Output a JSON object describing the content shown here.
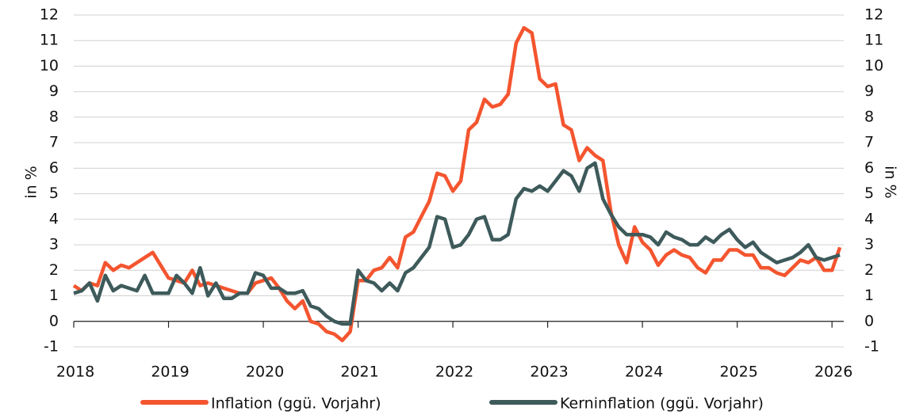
{
  "chart_data": {
    "type": "line",
    "ylabel": "in %",
    "y2label": "in %",
    "categories": [
      "2018",
      null,
      null,
      null,
      null,
      null,
      null,
      null,
      null,
      null,
      null,
      null,
      "2019",
      null,
      null,
      null,
      null,
      null,
      null,
      null,
      null,
      null,
      null,
      null,
      "2020",
      null,
      null,
      null,
      null,
      null,
      null,
      null,
      null,
      null,
      null,
      null,
      "2021",
      null,
      null,
      null,
      null,
      null,
      null,
      null,
      null,
      null,
      null,
      null,
      "2022",
      null,
      null,
      null,
      null,
      null,
      null,
      null,
      null,
      null,
      null,
      null,
      "2023",
      null,
      null,
      null,
      null,
      null,
      null,
      null,
      null,
      null,
      null,
      null,
      "2024",
      null,
      null,
      null,
      null,
      null,
      null,
      null,
      null,
      null,
      null,
      null,
      "2025",
      null,
      null,
      null,
      null,
      null,
      null,
      null,
      null,
      null,
      null,
      null,
      "2026",
      null
    ],
    "series": [
      {
        "name": "Inflation (ggü. Vorjahr)",
        "color": "#f4552f",
        "values": [
          1.4,
          1.2,
          1.5,
          1.4,
          2.3,
          2.0,
          2.2,
          2.1,
          2.3,
          2.5,
          2.7,
          2.2,
          1.7,
          1.6,
          1.5,
          2.0,
          1.4,
          1.5,
          1.4,
          1.3,
          1.2,
          1.1,
          1.1,
          1.5,
          1.6,
          1.7,
          1.3,
          0.8,
          0.5,
          0.8,
          0.0,
          -0.1,
          -0.4,
          -0.5,
          -0.75,
          -0.4,
          1.6,
          1.6,
          2.0,
          2.1,
          2.5,
          2.1,
          3.3,
          3.5,
          4.1,
          4.7,
          5.8,
          5.7,
          5.1,
          5.5,
          7.5,
          7.8,
          8.7,
          8.4,
          8.5,
          8.9,
          10.9,
          11.5,
          11.3,
          9.5,
          9.2,
          9.3,
          7.7,
          7.5,
          6.3,
          6.8,
          6.5,
          6.3,
          4.3,
          3.0,
          2.3,
          3.7,
          3.1,
          2.8,
          2.2,
          2.6,
          2.8,
          2.6,
          2.5,
          2.1,
          1.9,
          2.4,
          2.4,
          2.8,
          2.8,
          2.6,
          2.6,
          2.1,
          2.1,
          1.9,
          1.8,
          2.1,
          2.4,
          2.3,
          2.5,
          2.0,
          2.0,
          2.9
        ]
      },
      {
        "name": "Kerninflation (ggü. Vorjahr)",
        "color": "#3e5a5b",
        "values": [
          1.1,
          1.2,
          1.5,
          0.8,
          1.8,
          1.2,
          1.4,
          1.3,
          1.2,
          1.8,
          1.1,
          1.1,
          1.1,
          1.8,
          1.5,
          1.1,
          2.1,
          1.0,
          1.5,
          0.9,
          0.9,
          1.1,
          1.1,
          1.9,
          1.8,
          1.3,
          1.3,
          1.1,
          1.1,
          1.2,
          0.6,
          0.5,
          0.2,
          0.0,
          -0.1,
          -0.1,
          2.0,
          1.6,
          1.5,
          1.2,
          1.5,
          1.2,
          1.9,
          2.1,
          2.5,
          2.9,
          4.1,
          4.0,
          2.9,
          3.0,
          3.4,
          4.0,
          4.1,
          3.2,
          3.2,
          3.4,
          4.8,
          5.2,
          5.1,
          5.3,
          5.1,
          5.5,
          5.9,
          5.7,
          5.1,
          6.0,
          6.2,
          4.8,
          4.2,
          3.7,
          3.4,
          3.4,
          3.4,
          3.3,
          3.0,
          3.5,
          3.3,
          3.2,
          3.0,
          3.0,
          3.3,
          3.1,
          3.4,
          3.6,
          3.2,
          2.9,
          3.1,
          2.7,
          2.5,
          2.3,
          2.4,
          2.5,
          2.7,
          3.0,
          2.5,
          2.4,
          2.5,
          2.6
        ]
      }
    ],
    "ylim": [
      -1,
      12
    ],
    "yticks": [
      -1,
      0,
      1,
      2,
      3,
      4,
      5,
      6,
      7,
      8,
      9,
      10,
      11,
      12
    ],
    "y2lim": [
      -1,
      12
    ],
    "y2ticks": [
      -1,
      0,
      1,
      2,
      3,
      4,
      5,
      6,
      7,
      8,
      9,
      10,
      11,
      12
    ],
    "grid": true,
    "legend": "bottom"
  }
}
